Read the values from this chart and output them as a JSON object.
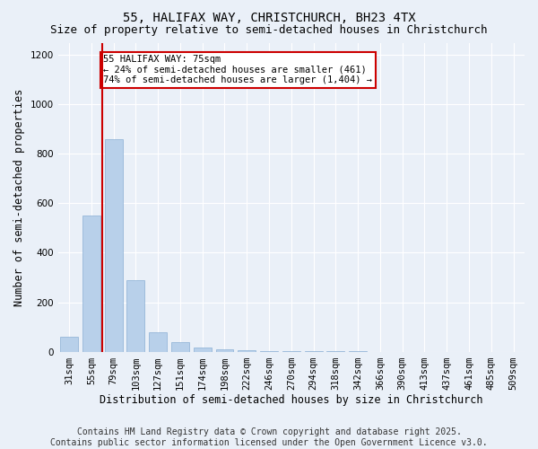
{
  "title1": "55, HALIFAX WAY, CHRISTCHURCH, BH23 4TX",
  "title2": "Size of property relative to semi-detached houses in Christchurch",
  "xlabel": "Distribution of semi-detached houses by size in Christchurch",
  "ylabel": "Number of semi-detached properties",
  "categories": [
    "31sqm",
    "55sqm",
    "79sqm",
    "103sqm",
    "127sqm",
    "151sqm",
    "174sqm",
    "198sqm",
    "222sqm",
    "246sqm",
    "270sqm",
    "294sqm",
    "318sqm",
    "342sqm",
    "366sqm",
    "390sqm",
    "413sqm",
    "437sqm",
    "461sqm",
    "485sqm",
    "509sqm"
  ],
  "values": [
    60,
    550,
    860,
    290,
    80,
    40,
    18,
    10,
    5,
    3,
    2,
    1,
    1,
    1,
    0,
    0,
    0,
    0,
    0,
    0,
    0
  ],
  "bar_color": "#b8d0ea",
  "bar_edge_color": "#8bafd4",
  "vline_color": "#cc0000",
  "vline_x_index": 1.5,
  "annotation_text": "55 HALIFAX WAY: 75sqm\n← 24% of semi-detached houses are smaller (461)\n74% of semi-detached houses are larger (1,404) →",
  "annotation_box_color": "white",
  "annotation_box_edge": "#cc0000",
  "ylim": [
    0,
    1250
  ],
  "yticks": [
    0,
    200,
    400,
    600,
    800,
    1000,
    1200
  ],
  "footer": "Contains HM Land Registry data © Crown copyright and database right 2025.\nContains public sector information licensed under the Open Government Licence v3.0.",
  "background_color": "#eaf0f8",
  "plot_background": "#eaf0f8",
  "grid_color": "white",
  "title_fontsize": 10,
  "subtitle_fontsize": 9,
  "axis_label_fontsize": 8.5,
  "tick_fontsize": 7.5,
  "footer_fontsize": 7
}
